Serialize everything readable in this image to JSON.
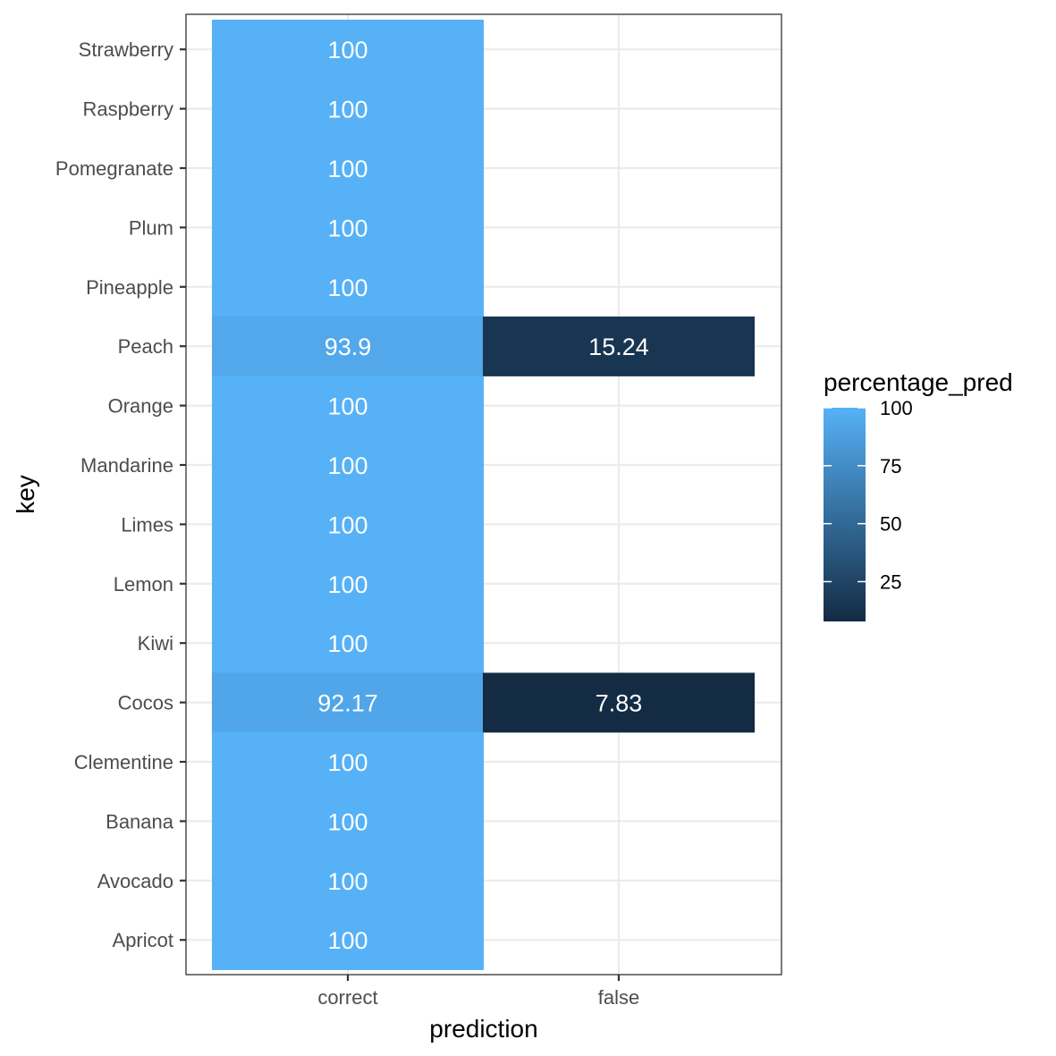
{
  "chart_data": {
    "type": "heatmap",
    "title": "",
    "xlabel": "prediction",
    "ylabel": "key",
    "x_categories": [
      "correct",
      "false"
    ],
    "y_categories": [
      "Strawberry",
      "Raspberry",
      "Pomegranate",
      "Plum",
      "Pineapple",
      "Peach",
      "Orange",
      "Mandarine",
      "Limes",
      "Lemon",
      "Kiwi",
      "Cocos",
      "Clementine",
      "Banana",
      "Avocado",
      "Apricot"
    ],
    "cells": [
      {
        "key": "Strawberry",
        "prediction": "correct",
        "value": 100,
        "label": "100"
      },
      {
        "key": "Raspberry",
        "prediction": "correct",
        "value": 100,
        "label": "100"
      },
      {
        "key": "Pomegranate",
        "prediction": "correct",
        "value": 100,
        "label": "100"
      },
      {
        "key": "Plum",
        "prediction": "correct",
        "value": 100,
        "label": "100"
      },
      {
        "key": "Pineapple",
        "prediction": "correct",
        "value": 100,
        "label": "100"
      },
      {
        "key": "Peach",
        "prediction": "correct",
        "value": 93.9,
        "label": "93.9"
      },
      {
        "key": "Peach",
        "prediction": "false",
        "value": 15.24,
        "label": "15.24"
      },
      {
        "key": "Orange",
        "prediction": "correct",
        "value": 100,
        "label": "100"
      },
      {
        "key": "Mandarine",
        "prediction": "correct",
        "value": 100,
        "label": "100"
      },
      {
        "key": "Limes",
        "prediction": "correct",
        "value": 100,
        "label": "100"
      },
      {
        "key": "Lemon",
        "prediction": "correct",
        "value": 100,
        "label": "100"
      },
      {
        "key": "Kiwi",
        "prediction": "correct",
        "value": 100,
        "label": "100"
      },
      {
        "key": "Cocos",
        "prediction": "correct",
        "value": 92.17,
        "label": "92.17"
      },
      {
        "key": "Cocos",
        "prediction": "false",
        "value": 7.83,
        "label": "7.83"
      },
      {
        "key": "Clementine",
        "prediction": "correct",
        "value": 100,
        "label": "100"
      },
      {
        "key": "Banana",
        "prediction": "correct",
        "value": 100,
        "label": "100"
      },
      {
        "key": "Avocado",
        "prediction": "correct",
        "value": 100,
        "label": "100"
      },
      {
        "key": "Apricot",
        "prediction": "correct",
        "value": 100,
        "label": "100"
      }
    ],
    "legend": {
      "title": "percentage_pred",
      "position": "right",
      "breaks": [
        100,
        75,
        50,
        25
      ],
      "break_labels": [
        "100",
        "75",
        "50",
        "25"
      ],
      "range": [
        7.83,
        100
      ],
      "color_low": "#132B43",
      "color_high": "#56B1F7"
    },
    "grid": true,
    "theme": "bw"
  }
}
